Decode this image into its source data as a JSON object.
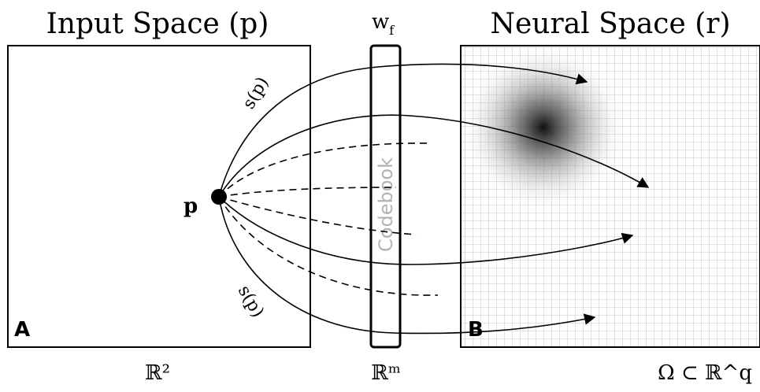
{
  "titles": {
    "input_space": "Input Space (p)",
    "neural_space": "Neural Space (r)",
    "weights": "w",
    "weights_sub": "f"
  },
  "labels": {
    "point": "p",
    "signal_top": "s(p)",
    "signal_bottom": "s(p)",
    "codebook": "Codebook",
    "panel_a": "A",
    "panel_b": "B"
  },
  "spaces": {
    "input": "ℝ²",
    "codebook": "ℝᵐ",
    "neural": "Ω ⊂ ℝ^q"
  },
  "colors": {
    "stroke": "#000000",
    "grid": "#bfbfbf",
    "codebook_text": "#b3b3b3",
    "activation_peak": "#1a1a1a"
  }
}
